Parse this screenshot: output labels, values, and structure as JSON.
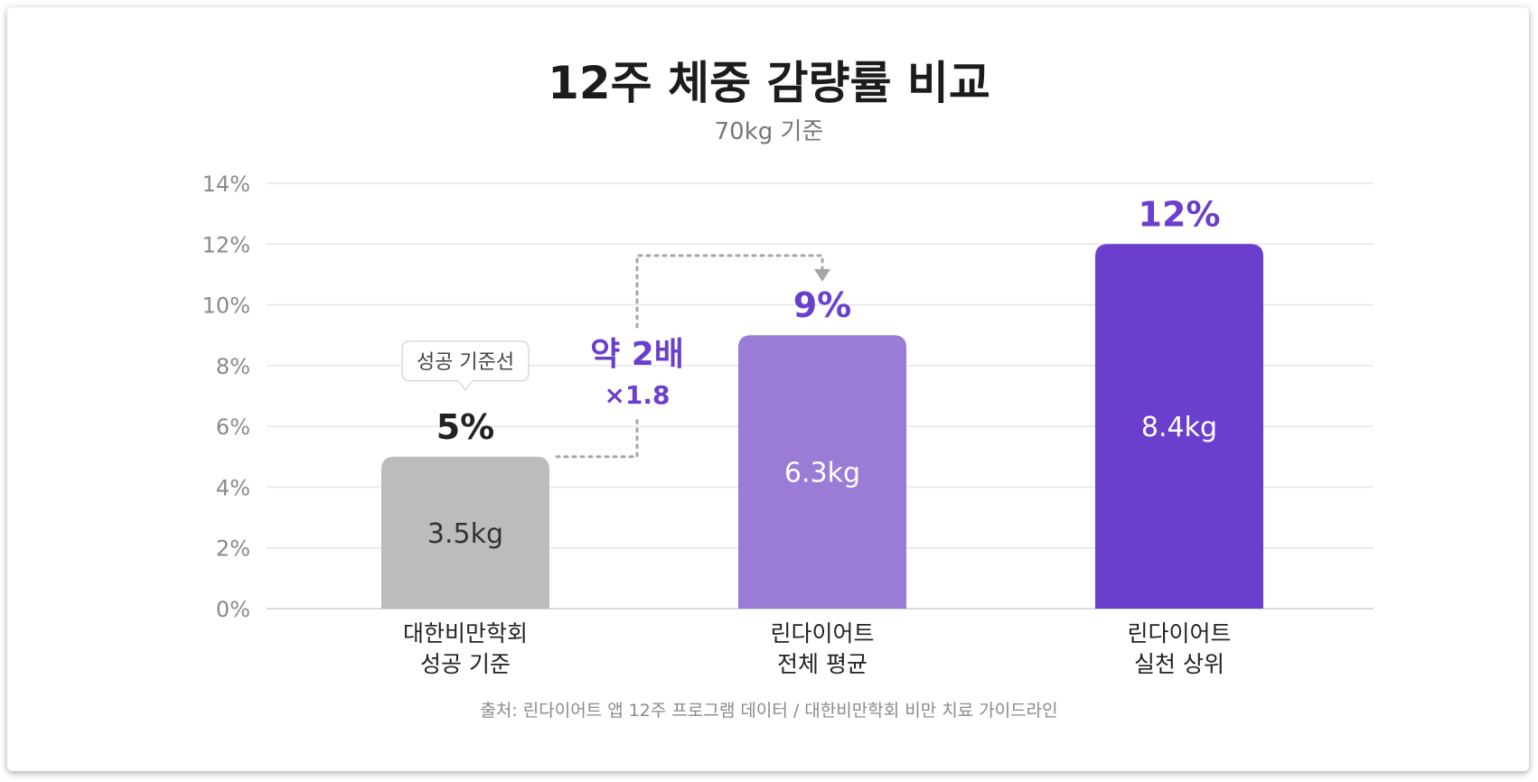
{
  "chart_data": {
    "type": "bar",
    "title": "12주 체중 감량률 비교",
    "subtitle": "70kg 기준",
    "categories": [
      [
        "대한비만학회",
        "성공 기준"
      ],
      [
        "린다이어트",
        "전체 평균"
      ],
      [
        "린다이어트",
        "실천 상위"
      ]
    ],
    "values": [
      5,
      9,
      12
    ],
    "value_labels": [
      "5%",
      "9%",
      "12%"
    ],
    "inner_labels": [
      "3.5kg",
      "6.3kg",
      "8.4kg"
    ],
    "bar_colors": [
      "#bcbcbc",
      "#9a7bd6",
      "#6b3fce"
    ],
    "top_label_colors": [
      "#222222",
      "#6b3fce",
      "#6b3fce"
    ],
    "inner_label_colors": [
      "#333333",
      "#ffffff",
      "#ffffff"
    ],
    "ylim": [
      0,
      14
    ],
    "yticks": [
      0,
      2,
      4,
      6,
      8,
      10,
      12,
      14
    ],
    "ytick_labels": [
      "0%",
      "2%",
      "4%",
      "6%",
      "8%",
      "10%",
      "12%",
      "14%"
    ],
    "grid": true,
    "callout": {
      "text": "성공 기준선"
    },
    "comparison": {
      "main": "약 2배",
      "sub": "×1.8",
      "from_index": 0,
      "to_index": 1,
      "color": "#6b3fce"
    },
    "source": "출처: 린다이어트 앱 12주 프로그램 데이터 / 대한비만학회 비만 치료 가이드라인"
  }
}
